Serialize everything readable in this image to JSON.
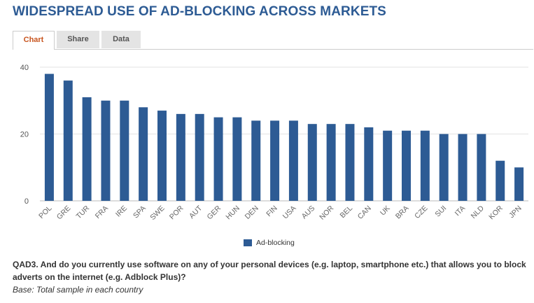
{
  "page": {
    "title": "WIDESPREAD USE OF AD-BLOCKING ACROSS MARKETS"
  },
  "tabs": [
    {
      "label": "Chart",
      "active": true
    },
    {
      "label": "Share",
      "active": false
    },
    {
      "label": "Data",
      "active": false
    }
  ],
  "colors": {
    "bar": "#2d5b94",
    "title": "#2d5b94",
    "active_tab": "#c8551f"
  },
  "chart_data": {
    "type": "bar",
    "title": "",
    "xlabel": "",
    "ylabel": "",
    "ylim": [
      0,
      40
    ],
    "yticks": [
      0,
      20,
      40
    ],
    "grid": true,
    "legend_position": "bottom-center",
    "categories": [
      "POL",
      "GRE",
      "TUR",
      "FRA",
      "IRE",
      "SPA",
      "SWE",
      "POR",
      "AUT",
      "GER",
      "HUN",
      "DEN",
      "FIN",
      "USA",
      "AUS",
      "NOR",
      "BEL",
      "CAN",
      "UK",
      "BRA",
      "CZE",
      "SUI",
      "ITA",
      "NLD",
      "KOR",
      "JPN"
    ],
    "series": [
      {
        "name": "Ad-blocking",
        "values": [
          38,
          36,
          31,
          30,
          30,
          28,
          27,
          26,
          26,
          25,
          25,
          24,
          24,
          24,
          23,
          23,
          23,
          22,
          21,
          21,
          21,
          20,
          20,
          20,
          12,
          10
        ]
      }
    ]
  },
  "footer": {
    "question": "QAD3. And do you currently use software on any of your personal devices (e.g. laptop, smartphone etc.) that allows you to block adverts on the internet (e.g. Adblock Plus)?",
    "base": "Base: Total sample in each country"
  }
}
